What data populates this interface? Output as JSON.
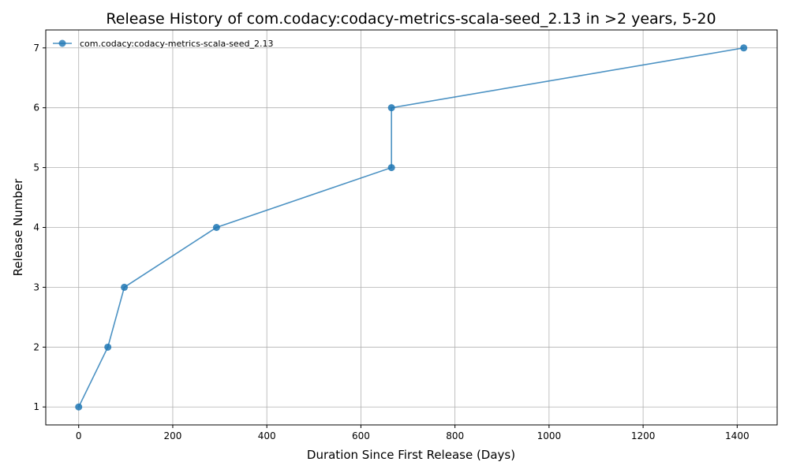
{
  "chart_data": {
    "type": "line",
    "title": "Release History of com.codacy:codacy-metrics-scala-seed_2.13 in >2 years, 5-20",
    "xlabel": "Duration Since First Release (Days)",
    "ylabel": "Release Number",
    "xlim": [
      -70,
      1485
    ],
    "ylim": [
      0.7,
      7.3
    ],
    "xticks": [
      0,
      200,
      400,
      600,
      800,
      1000,
      1200,
      1400
    ],
    "yticks": [
      1,
      2,
      3,
      4,
      5,
      6,
      7
    ],
    "grid": true,
    "legend_position": "top-left",
    "series": [
      {
        "name": "com.codacy:codacy-metrics-scala-seed_2.13",
        "color": "#1f77b4",
        "x": [
          0,
          62,
          97,
          293,
          665,
          665,
          1414
        ],
        "y": [
          1,
          2,
          3,
          4,
          5,
          6,
          7
        ]
      }
    ]
  }
}
